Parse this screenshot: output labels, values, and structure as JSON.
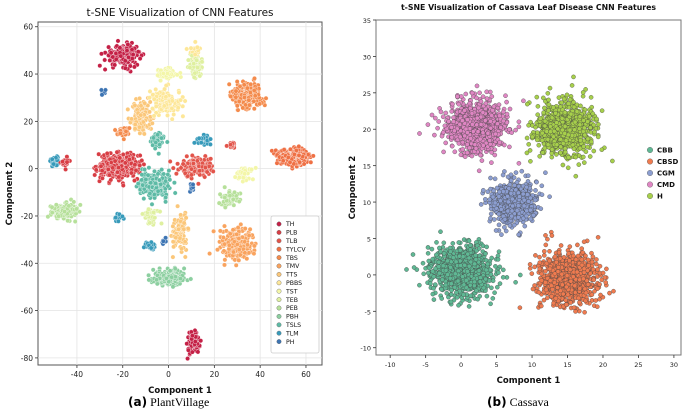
{
  "captions": {
    "a_letter": "(a)",
    "a_text": "PlantVillage",
    "b_letter": "(b)",
    "b_text": "Cassava"
  },
  "chart_data": [
    {
      "type": "scatter",
      "title": "t-SNE Visualization of CNN Features",
      "xlabel": "Component 1",
      "ylabel": "Component 2",
      "xlim": [
        -57,
        67
      ],
      "ylim": [
        -83,
        62
      ],
      "xticks": [
        -40,
        -20,
        0,
        20,
        40,
        60
      ],
      "yticks": [
        -80,
        -60,
        -40,
        -20,
        0,
        20,
        40,
        60
      ],
      "grid": true,
      "legend_position": "lower-right",
      "series": [
        {
          "name": "TH",
          "color": "#c42046",
          "clusters": [
            [
              -20,
              48,
              7,
              4,
              180
            ],
            [
              11,
              -74,
              2.5,
              4,
              90
            ]
          ]
        },
        {
          "name": "PLB",
          "color": "#d83d44",
          "clusters": [
            [
              -22,
              1,
              8,
              5,
              320
            ],
            [
              -45,
              3,
              2,
              2,
              20
            ]
          ]
        },
        {
          "name": "TLB",
          "color": "#e2544a",
          "clusters": [
            [
              12,
              1,
              7,
              4,
              150
            ],
            [
              28,
              10,
              1.5,
              1.5,
              15
            ]
          ]
        },
        {
          "name": "TYLCV",
          "color": "#ef7044",
          "clusters": [
            [
              55,
              5,
              6,
              3,
              220
            ]
          ]
        },
        {
          "name": "TBS",
          "color": "#f48b4c",
          "clusters": [
            [
              34,
              31,
              6,
              5,
              240
            ],
            [
              -20,
              16,
              3,
              2,
              30
            ]
          ]
        },
        {
          "name": "TMV",
          "color": "#f9a35e",
          "clusters": [
            [
              30,
              -32,
              7,
              6,
              260
            ]
          ]
        },
        {
          "name": "TTS",
          "color": "#fbc77a",
          "clusters": [
            [
              -12,
              22,
              4,
              6,
              120
            ],
            [
              5,
              -27,
              3,
              7,
              100
            ]
          ]
        },
        {
          "name": "PBBS",
          "color": "#fde798",
          "clusters": [
            [
              -2,
              28,
              6,
              5,
              130
            ],
            [
              12,
              50,
              2,
              2,
              20
            ]
          ]
        },
        {
          "name": "TST",
          "color": "#f3f6a8",
          "clusters": [
            [
              -1,
              40,
              4,
              2,
              70
            ],
            [
              33,
              -2,
              3,
              3,
              40
            ]
          ]
        },
        {
          "name": "TEB",
          "color": "#dff0a0",
          "clusters": [
            [
              12,
              44,
              3,
              4,
              80
            ],
            [
              -8,
              -20,
              3,
              3,
              40
            ]
          ]
        },
        {
          "name": "PEB",
          "color": "#b6e09a",
          "clusters": [
            [
              -45,
              -18,
              5,
              3,
              180
            ],
            [
              26,
              -13,
              4,
              3,
              60
            ]
          ]
        },
        {
          "name": "PBH",
          "color": "#8ccfa0",
          "clusters": [
            [
              0,
              -46,
              6,
              3,
              200
            ]
          ]
        },
        {
          "name": "TSLS",
          "color": "#5dbaa5",
          "clusters": [
            [
              -6,
              -7,
              6,
              5,
              220
            ],
            [
              -5,
              12,
              3,
              3,
              50
            ]
          ]
        },
        {
          "name": "TLM",
          "color": "#379aba",
          "clusters": [
            [
              -50,
              3,
              1.5,
              2,
              25
            ],
            [
              -22,
              -21,
              1.5,
              1.5,
              15
            ],
            [
              -8,
              -32,
              2,
              2,
              20
            ],
            [
              15,
              12,
              3,
              2,
              30
            ]
          ]
        },
        {
          "name": "PH",
          "color": "#3c74b3",
          "clusters": [
            [
              10,
              -8,
              1.5,
              1.5,
              12
            ],
            [
              -28,
              32,
              1.5,
              1.5,
              8
            ],
            [
              -2,
              -31,
              1.2,
              1.2,
              8
            ]
          ]
        }
      ]
    },
    {
      "type": "scatter",
      "title": "t-SNE Visualization of Cassava Leaf Disease CNN Features",
      "xlabel": "Component 1",
      "ylabel": "Component 2",
      "xlim": [
        -12,
        31
      ],
      "ylim": [
        -11,
        35
      ],
      "xticks": [
        -10,
        -5,
        0,
        5,
        10,
        15,
        20,
        25,
        30
      ],
      "yticks": [
        -10,
        -5,
        0,
        5,
        10,
        15,
        20,
        25,
        30,
        35
      ],
      "grid": false,
      "legend_position": "right",
      "series": [
        {
          "name": "CBB",
          "color": "#5fb894",
          "clusters": [
            [
              0,
              0.5,
              4,
              3.3,
              850
            ]
          ]
        },
        {
          "name": "CBSD",
          "color": "#f07b4f",
          "clusters": [
            [
              15,
              -0.5,
              3.8,
              3.4,
              850
            ]
          ]
        },
        {
          "name": "CGM",
          "color": "#8c9ed1",
          "clusters": [
            [
              7.5,
              10,
              3,
              2.8,
              650
            ]
          ]
        },
        {
          "name": "CMD",
          "color": "#df86c3",
          "clusters": [
            [
              2,
              20.5,
              3.8,
              3.2,
              850
            ]
          ]
        },
        {
          "name": "H",
          "color": "#a7d04b",
          "clusters": [
            [
              14.5,
              20,
              3.5,
              3.3,
              850
            ]
          ]
        }
      ]
    }
  ]
}
